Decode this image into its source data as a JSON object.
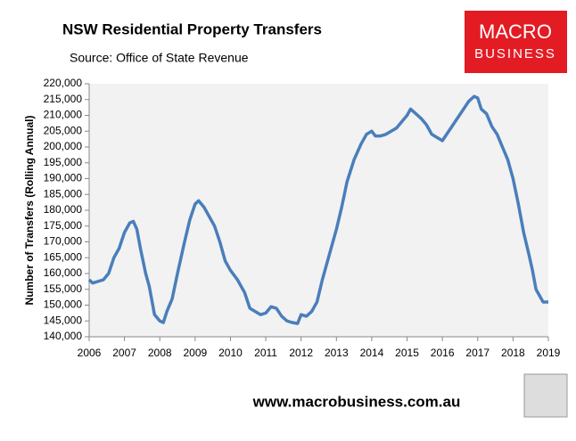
{
  "chart_data": {
    "type": "line",
    "title": "NSW Residential Property Transfers",
    "subtitle": "Source: Office of State Revenue",
    "y_label": "Number of Transfers (Rolling Annual)",
    "x": [
      2006.0,
      2006.1,
      2006.25,
      2006.4,
      2006.55,
      2006.7,
      2006.85,
      2007.0,
      2007.15,
      2007.25,
      2007.35,
      2007.45,
      2007.6,
      2007.7,
      2007.85,
      2008.0,
      2008.1,
      2008.2,
      2008.35,
      2008.5,
      2008.7,
      2008.85,
      2009.0,
      2009.1,
      2009.25,
      2009.4,
      2009.55,
      2009.7,
      2009.85,
      2010.0,
      2010.2,
      2010.4,
      2010.55,
      2010.7,
      2010.85,
      2011.0,
      2011.15,
      2011.3,
      2011.45,
      2011.6,
      2011.75,
      2011.9,
      2012.0,
      2012.15,
      2012.3,
      2012.45,
      2012.6,
      2012.8,
      2013.0,
      2013.15,
      2013.3,
      2013.5,
      2013.7,
      2013.85,
      2014.0,
      2014.1,
      2014.25,
      2014.4,
      2014.55,
      2014.7,
      2014.85,
      2015.0,
      2015.1,
      2015.25,
      2015.4,
      2015.55,
      2015.7,
      2015.85,
      2016.0,
      2016.15,
      2016.3,
      2016.45,
      2016.6,
      2016.75,
      2016.9,
      2017.0,
      2017.1,
      2017.25,
      2017.4,
      2017.55,
      2017.7,
      2017.85,
      2018.0,
      2018.15,
      2018.3,
      2018.45,
      2018.55,
      2018.65,
      2018.75,
      2018.85,
      2019.0
    ],
    "series": [
      {
        "color": "#4a7ebb",
        "values": [
          158000,
          157000,
          157500,
          158000,
          160000,
          165000,
          168000,
          173000,
          176000,
          176500,
          174000,
          168000,
          160000,
          156000,
          147000,
          145000,
          144500,
          148000,
          152000,
          160000,
          170000,
          177000,
          182000,
          183000,
          181000,
          178000,
          175000,
          170000,
          164000,
          161000,
          158000,
          154000,
          149000,
          148000,
          147000,
          147500,
          149500,
          149000,
          146500,
          145000,
          144500,
          144200,
          147000,
          146500,
          148000,
          151000,
          158000,
          166000,
          174000,
          181000,
          189000,
          196000,
          201000,
          204000,
          205000,
          203500,
          203500,
          204000,
          205000,
          206000,
          208000,
          210000,
          212000,
          210500,
          209000,
          207000,
          204000,
          203000,
          202000,
          204500,
          207000,
          209500,
          212000,
          214500,
          216000,
          215500,
          212000,
          210500,
          206500,
          204000,
          200000,
          196000,
          190000,
          182000,
          173000,
          166000,
          161000,
          155000,
          153000,
          151000,
          151000
        ]
      }
    ],
    "xlim": [
      2006,
      2019
    ],
    "xticks": [
      2006,
      2007,
      2008,
      2009,
      2010,
      2011,
      2012,
      2013,
      2014,
      2015,
      2016,
      2017,
      2018,
      2019
    ],
    "ylim": [
      140000,
      220000
    ],
    "yticks": [
      {
        "value": 140000,
        "label": "140,000"
      },
      {
        "value": 145000,
        "label": "145,000"
      },
      {
        "value": 150000,
        "label": "150,000"
      },
      {
        "value": 155000,
        "label": "155,000"
      },
      {
        "value": 160000,
        "label": "160,000"
      },
      {
        "value": 165000,
        "label": "165,000"
      },
      {
        "value": 170000,
        "label": "170,000"
      },
      {
        "value": 175000,
        "label": "175,000"
      },
      {
        "value": 180000,
        "label": "180,000"
      },
      {
        "value": 185000,
        "label": "185,000"
      },
      {
        "value": 190000,
        "label": "190,000"
      },
      {
        "value": 195000,
        "label": "195,000"
      },
      {
        "value": 200000,
        "label": "200,000"
      },
      {
        "value": 205000,
        "label": "205,000"
      },
      {
        "value": 210000,
        "label": "210,000"
      },
      {
        "value": 215000,
        "label": "215,000"
      },
      {
        "value": 220000,
        "label": "220,000"
      }
    ],
    "grid": false
  },
  "logo": {
    "line1": "MACRO",
    "line2": "BUSINESS"
  },
  "footer": "www.macrobusiness.com.au"
}
